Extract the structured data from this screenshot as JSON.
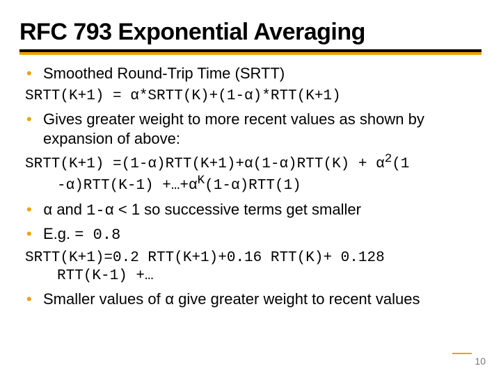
{
  "accent_color": "#f0a000",
  "title": "RFC 793 Exponential Averaging",
  "bullets": {
    "b1": "Smoothed Round-Trip Time (SRTT)",
    "c1": "SRTT(K+1) = α*SRTT(K)+(1-α)*RTT(K+1)",
    "b2": "Gives greater weight to more recent values as shown by expansion of above:",
    "c2a": "SRTT(K+1) =(1-α)RTT(K+1)+α(1-α)RTT(K) + α",
    "c2a_sup": "2",
    "c2a_tail": "(1",
    "c2b_a": "-α)RTT(K-1) +…+α",
    "c2b_sup": "K",
    "c2b_b": "(1-α)RTT(1)",
    "b3a": "α",
    "b3b": " and ",
    "b3c": "1-α",
    "b3d": " < 1 so successive terms get smaller",
    "b4a": "E.g.",
    "b4b": "= 0.8",
    "c3a": "SRTT(K+1)=0.2 RTT(K+1)+0.16 RTT(K)+ 0.128",
    "c3b": "RTT(K-1) +…",
    "b5a": "Smaller values of ",
    "b5b": "α",
    "b5c": " give greater weight to recent values"
  },
  "page_number": "10"
}
